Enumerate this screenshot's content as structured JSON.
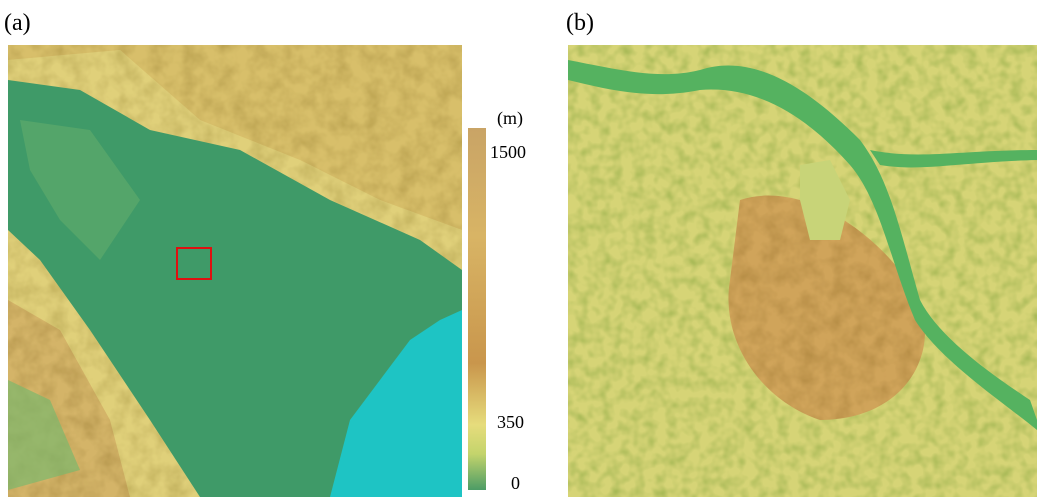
{
  "panels": [
    {
      "label": "(a)"
    },
    {
      "label": "(b)"
    }
  ],
  "colorbar": {
    "unit": "(m)",
    "ticks": [
      1500,
      350,
      0
    ]
  }
}
